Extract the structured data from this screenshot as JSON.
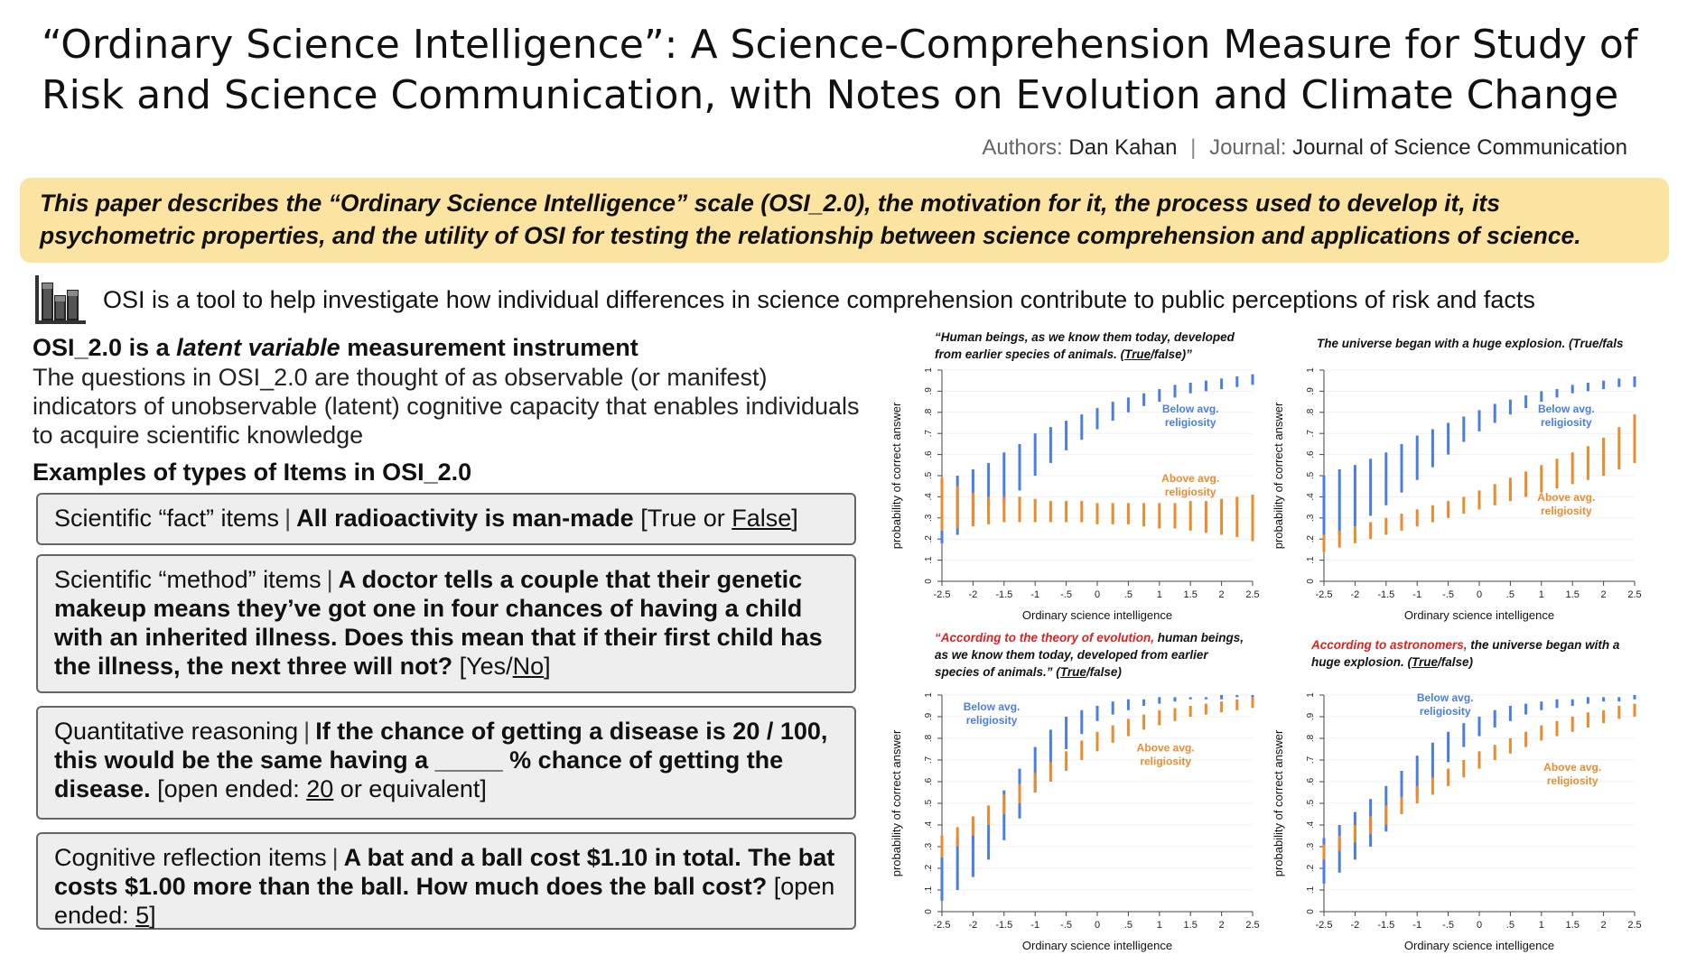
{
  "title": "“Ordinary Science Intelligence”: A Science-Comprehension Measure for Study of Risk and Science Communication, with Notes on Evolution and Climate Change",
  "meta": {
    "authors_key": "Authors:",
    "authors": "Dan Kahan",
    "journal_key": "Journal:",
    "journal": "Journal of Science Communication"
  },
  "abstract": "This paper describes the “Ordinary Science Intelligence” scale (OSI_2.0), the motivation for it, the process used to develop it, its psychometric properties, and the utility of OSI for testing the relationship between science comprehension and applications of science.",
  "tagline": {
    "icon": "bar-chart-icon",
    "text": "OSI is a tool to help investigate how individual differences in science comprehension contribute to public perceptions of risk and facts"
  },
  "section": {
    "heading_pre": "OSI_2.0 is a ",
    "heading_em": "latent variable",
    "heading_post": " measurement instrument",
    "description": "The questions in OSI_2.0 are thought of as observable (or manifest) indicators of unobservable (latent) cognitive capacity that enables individuals to acquire scientific knowledge",
    "examples_heading": "Examples of types of Items in OSI_2.0"
  },
  "items": [
    {
      "category": "Scientific “fact” items",
      "question": "All radioactivity is man-made",
      "answer_pre": "[True or ",
      "answer_u": "False",
      "answer_post": "]"
    },
    {
      "category": "Scientific “method” items",
      "question": "A doctor tells a couple that their genetic makeup means they’ve got one in four chances of having a child with an inherited illness. Does this mean that if their first child has the illness, the next three will not?",
      "answer_pre": "[Yes/",
      "answer_u": "No",
      "answer_post": "]"
    },
    {
      "category": "Quantitative reasoning",
      "question": "If the chance of getting a disease is 20 / 100, this would be the same having a _____ % chance of getting the disease.",
      "answer_pre": "[open ended: ",
      "answer_u": "20",
      "answer_post": " or equivalent]"
    },
    {
      "category": "Cognitive reflection items",
      "question": "A bat and a ball cost $1.10 in total. The bat costs $1.00 more than the ball. How much does the ball cost?",
      "answer_pre": "[open ended: ",
      "answer_u": "5",
      "answer_post": "]"
    }
  ],
  "chart_titles": [
    {
      "pre_red": "",
      "text": "“Human beings, as we know them today, developed from earlier species of animals. (",
      "u": "True",
      "post": "/false)”"
    },
    {
      "pre_red": "",
      "text": "The universe began with a huge explosion. (True/fals",
      "u": "",
      "post": ""
    },
    {
      "pre_red": "“According to the theory of evolution,",
      "text": " human beings, as we know them today, developed from earlier species of animals.” (",
      "u": "True",
      "post": "/false)"
    },
    {
      "pre_red": "According to astronomers,",
      "text": " the universe began with a huge explosion. (",
      "u": "True",
      "post": "/false)"
    }
  ],
  "colors": {
    "below": "#4a7ee0",
    "above": "#ea8c2e",
    "abstract_bg": "#fbe3a2"
  },
  "chart_data": [
    {
      "type": "line",
      "title": "“Human beings, as we know them today, developed from earlier species of animals. (True/false)”",
      "xlabel": "Ordinary science intelligence",
      "ylabel": "probability of correct answer",
      "xlim": [
        -2.5,
        2.5
      ],
      "ylim": [
        0,
        1
      ],
      "x_ticks": [
        "-2.5",
        "-2",
        "-1.5",
        "-1",
        "-.5",
        "0",
        ".5",
        "1",
        "1.5",
        "2",
        "2.5"
      ],
      "y_ticks": [
        "0",
        ".1",
        ".2",
        ".3",
        ".4",
        ".5",
        ".6",
        ".7",
        ".8",
        ".9",
        "1"
      ],
      "x": [
        -2.5,
        -2.25,
        -2,
        -1.75,
        -1.5,
        -1.25,
        -1,
        -0.75,
        -0.5,
        -0.25,
        0,
        0.25,
        0.5,
        0.75,
        1,
        1.25,
        1.5,
        1.75,
        2,
        2.25,
        2.5
      ],
      "series": [
        {
          "name": "Below avg. religiosity",
          "color": "#4a7ee0",
          "low": [
            0.18,
            0.22,
            0.27,
            0.32,
            0.37,
            0.43,
            0.5,
            0.56,
            0.62,
            0.67,
            0.72,
            0.76,
            0.8,
            0.83,
            0.85,
            0.87,
            0.89,
            0.9,
            0.91,
            0.92,
            0.93
          ],
          "high": [
            0.47,
            0.5,
            0.53,
            0.56,
            0.61,
            0.65,
            0.7,
            0.73,
            0.76,
            0.79,
            0.82,
            0.85,
            0.87,
            0.89,
            0.91,
            0.93,
            0.94,
            0.95,
            0.96,
            0.97,
            0.98
          ]
        },
        {
          "name": "Above avg. religiosity",
          "color": "#ea8c2e",
          "low": [
            0.24,
            0.25,
            0.26,
            0.27,
            0.28,
            0.28,
            0.28,
            0.28,
            0.28,
            0.28,
            0.27,
            0.27,
            0.27,
            0.26,
            0.25,
            0.25,
            0.24,
            0.23,
            0.22,
            0.21,
            0.19
          ],
          "high": [
            0.49,
            0.45,
            0.42,
            0.4,
            0.4,
            0.4,
            0.39,
            0.38,
            0.38,
            0.38,
            0.37,
            0.37,
            0.37,
            0.37,
            0.37,
            0.37,
            0.38,
            0.38,
            0.39,
            0.4,
            0.41
          ]
        }
      ],
      "labels": [
        {
          "series": "Below avg. religiosity",
          "text": [
            "Below avg.",
            "religiosity"
          ]
        },
        {
          "series": "Above avg. religiosity",
          "text": [
            "Above avg.",
            "religiosity"
          ]
        }
      ]
    },
    {
      "type": "line",
      "title": "The universe began with a huge explosion. (True/false)",
      "xlabel": "Ordinary science intelligence",
      "ylabel": "probability of correct answer",
      "xlim": [
        -2.5,
        2.5
      ],
      "ylim": [
        0,
        1
      ],
      "x_ticks": [
        "-2.5",
        "-2",
        "-1.5",
        "-1",
        "-.5",
        "0",
        ".5",
        "1",
        "1.5",
        "2",
        "2.5"
      ],
      "y_ticks": [
        "0",
        ".1",
        ".2",
        ".3",
        ".4",
        ".5",
        ".6",
        ".7",
        ".8",
        ".9",
        "1"
      ],
      "x": [
        -2.5,
        -2.25,
        -2,
        -1.75,
        -1.5,
        -1.25,
        -1,
        -0.75,
        -0.5,
        -0.25,
        0,
        0.25,
        0.5,
        0.75,
        1,
        1.25,
        1.5,
        1.75,
        2,
        2.25,
        2.5
      ],
      "series": [
        {
          "name": "Below avg. religiosity",
          "color": "#4a7ee0",
          "low": [
            0.18,
            0.22,
            0.26,
            0.31,
            0.36,
            0.42,
            0.48,
            0.54,
            0.6,
            0.66,
            0.71,
            0.75,
            0.79,
            0.82,
            0.85,
            0.87,
            0.89,
            0.9,
            0.91,
            0.92,
            0.92
          ],
          "high": [
            0.5,
            0.53,
            0.55,
            0.58,
            0.61,
            0.65,
            0.69,
            0.72,
            0.75,
            0.78,
            0.81,
            0.84,
            0.86,
            0.88,
            0.9,
            0.91,
            0.93,
            0.94,
            0.95,
            0.96,
            0.97
          ]
        },
        {
          "name": "Above avg. religiosity",
          "color": "#ea8c2e",
          "low": [
            0.14,
            0.16,
            0.18,
            0.2,
            0.22,
            0.24,
            0.26,
            0.28,
            0.3,
            0.32,
            0.34,
            0.36,
            0.38,
            0.4,
            0.42,
            0.44,
            0.46,
            0.48,
            0.5,
            0.53,
            0.56
          ],
          "high": [
            0.22,
            0.24,
            0.26,
            0.28,
            0.3,
            0.32,
            0.34,
            0.36,
            0.38,
            0.4,
            0.43,
            0.46,
            0.49,
            0.52,
            0.55,
            0.58,
            0.61,
            0.64,
            0.68,
            0.73,
            0.79
          ]
        }
      ],
      "labels": [
        {
          "series": "Below avg. religiosity",
          "text": [
            "Below avg.",
            "religiosity"
          ]
        },
        {
          "series": "Above avg. religiosity",
          "text": [
            "Above avg.",
            "religiosity"
          ]
        }
      ]
    },
    {
      "type": "line",
      "title": "“According to the theory of evolution, human beings, as we know them today, developed from earlier species of animals.” (True/false)",
      "xlabel": "Ordinary science intelligence",
      "ylabel": "probability of correct answer",
      "xlim": [
        -2.5,
        2.5
      ],
      "ylim": [
        0,
        1
      ],
      "x_ticks": [
        "-2.5",
        "-2",
        "-1.5",
        "-1",
        "-.5",
        "0",
        ".5",
        "1",
        "1.5",
        "2",
        "2.5"
      ],
      "y_ticks": [
        "0",
        ".1",
        ".2",
        ".3",
        ".4",
        ".5",
        ".6",
        ".7",
        ".8",
        ".9",
        "1"
      ],
      "x": [
        -2.5,
        -2.25,
        -2,
        -1.75,
        -1.5,
        -1.25,
        -1,
        -0.75,
        -0.5,
        -0.25,
        0,
        0.25,
        0.5,
        0.75,
        1,
        1.25,
        1.5,
        1.75,
        2,
        2.25,
        2.5
      ],
      "series": [
        {
          "name": "Below avg. religiosity",
          "color": "#4a7ee0",
          "low": [
            0.05,
            0.1,
            0.16,
            0.24,
            0.33,
            0.43,
            0.55,
            0.66,
            0.75,
            0.82,
            0.88,
            0.91,
            0.93,
            0.95,
            0.96,
            0.97,
            0.98,
            0.98,
            0.98,
            0.99,
            0.99
          ],
          "high": [
            0.28,
            0.34,
            0.4,
            0.47,
            0.56,
            0.66,
            0.76,
            0.84,
            0.9,
            0.93,
            0.95,
            0.97,
            0.98,
            0.98,
            0.99,
            0.99,
            0.99,
            0.99,
            1.0,
            1.0,
            1.0
          ]
        },
        {
          "name": "Above avg. religiosity",
          "color": "#ea8c2e",
          "low": [
            0.25,
            0.3,
            0.35,
            0.4,
            0.45,
            0.5,
            0.55,
            0.6,
            0.65,
            0.7,
            0.74,
            0.78,
            0.81,
            0.84,
            0.86,
            0.88,
            0.9,
            0.91,
            0.92,
            0.93,
            0.94
          ],
          "high": [
            0.35,
            0.39,
            0.44,
            0.49,
            0.54,
            0.59,
            0.64,
            0.69,
            0.74,
            0.79,
            0.83,
            0.86,
            0.89,
            0.91,
            0.93,
            0.94,
            0.95,
            0.96,
            0.97,
            0.98,
            0.99
          ]
        }
      ],
      "labels": [
        {
          "series": "Below avg. religiosity",
          "text": [
            "Below avg.",
            "religiosity"
          ]
        },
        {
          "series": "Above avg. religiosity",
          "text": [
            "Above avg.",
            "religiosity"
          ]
        }
      ]
    },
    {
      "type": "line",
      "title": "According to astronomers, the universe began with a huge explosion. (True/false)",
      "xlabel": "Ordinary science intelligence",
      "ylabel": "probability of correct answer",
      "xlim": [
        -2.5,
        2.5
      ],
      "ylim": [
        0,
        1
      ],
      "x_ticks": [
        "-2.5",
        "-2",
        "-1.5",
        "-1",
        "-.5",
        "0",
        ".5",
        "1",
        "1.5",
        "2",
        "2.5"
      ],
      "y_ticks": [
        "0",
        ".1",
        ".2",
        ".3",
        ".4",
        ".5",
        ".6",
        ".7",
        ".8",
        ".9",
        "1"
      ],
      "x": [
        -2.5,
        -2.25,
        -2,
        -1.75,
        -1.5,
        -1.25,
        -1,
        -0.75,
        -0.5,
        -0.25,
        0,
        0.25,
        0.5,
        0.75,
        1,
        1.25,
        1.5,
        1.75,
        2,
        2.25,
        2.5
      ],
      "series": [
        {
          "name": "Below avg. religiosity",
          "color": "#4a7ee0",
          "low": [
            0.13,
            0.18,
            0.24,
            0.3,
            0.37,
            0.45,
            0.53,
            0.61,
            0.69,
            0.76,
            0.81,
            0.85,
            0.88,
            0.91,
            0.93,
            0.94,
            0.95,
            0.96,
            0.97,
            0.97,
            0.98
          ],
          "high": [
            0.34,
            0.4,
            0.46,
            0.52,
            0.58,
            0.65,
            0.72,
            0.78,
            0.83,
            0.87,
            0.9,
            0.93,
            0.95,
            0.96,
            0.97,
            0.98,
            0.98,
            0.99,
            0.99,
            0.99,
            1.0
          ]
        },
        {
          "name": "Above avg. religiosity",
          "color": "#ea8c2e",
          "low": [
            0.24,
            0.28,
            0.32,
            0.36,
            0.4,
            0.45,
            0.5,
            0.54,
            0.58,
            0.62,
            0.66,
            0.7,
            0.73,
            0.76,
            0.79,
            0.81,
            0.83,
            0.85,
            0.87,
            0.89,
            0.9
          ],
          "high": [
            0.31,
            0.35,
            0.4,
            0.44,
            0.49,
            0.53,
            0.58,
            0.62,
            0.66,
            0.7,
            0.74,
            0.77,
            0.8,
            0.83,
            0.86,
            0.88,
            0.9,
            0.92,
            0.93,
            0.95,
            0.96
          ]
        }
      ],
      "labels": [
        {
          "series": "Below avg. religiosity",
          "text": [
            "Below avg.",
            "religiosity"
          ]
        },
        {
          "series": "Above avg. religiosity",
          "text": [
            "Above avg.",
            "religiosity"
          ]
        }
      ]
    }
  ]
}
